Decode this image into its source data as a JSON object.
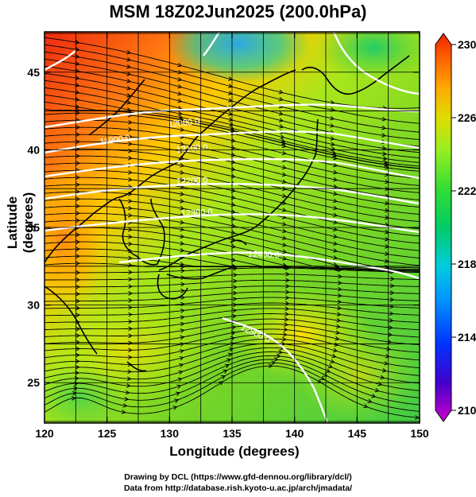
{
  "title": "MSM 18Z02Jun2025 (200.0hPa)",
  "axes": {
    "xlabel": "Longitude (degrees)",
    "ylabel": "Latitude  (degrees)",
    "x_ticks": [
      120,
      125,
      130,
      135,
      140,
      145,
      150
    ],
    "y_ticks": [
      25,
      30,
      35,
      40,
      45
    ],
    "x_range": [
      120,
      150
    ],
    "y_range": [
      22.4,
      47.6
    ]
  },
  "colorbar": {
    "ticks": [
      230,
      226,
      222,
      218,
      214,
      210
    ],
    "range": [
      210,
      230
    ],
    "colors": [
      "#cc00cc",
      "#4400cc",
      "#0033ff",
      "#0099ff",
      "#00ccdd",
      "#00cc66",
      "#33dd33",
      "#99ee22",
      "#dddd00",
      "#ffaa00",
      "#ff6600",
      "#ee2200"
    ]
  },
  "contours": [
    {
      "label": "11900.0"
    },
    {
      "label": "12000.0"
    },
    {
      "label": "12100.0"
    },
    {
      "label": "12200.0"
    },
    {
      "label": "12300.0"
    },
    {
      "label": "12400.0"
    },
    {
      "label": "12500.0"
    }
  ],
  "credits": {
    "line1": "Drawing by DCL (https://www.gfd-dennou.org/library/dcl/)",
    "line2": "Data from http://database.rish.kyoto-u.ac.jp/arch/jmadata/"
  }
}
